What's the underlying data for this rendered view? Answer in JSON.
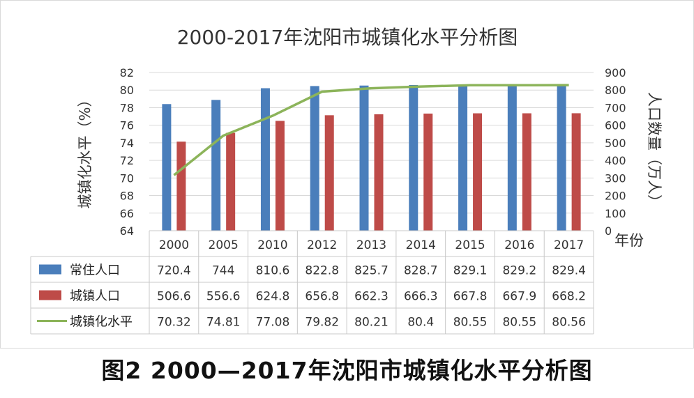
{
  "chart_data": {
    "type": "bar",
    "title": "2000-2017年沈阳市城镇化水平分析图",
    "caption": "图2 2000—2017年沈阳市城镇化水平分析图",
    "ylabel_left": "城镇化水平（%）",
    "ylabel_right": "人口数量（万人）",
    "xlabel": "年份",
    "categories": [
      "2000",
      "2005",
      "2010",
      "2012",
      "2013",
      "2014",
      "2015",
      "2016",
      "2017"
    ],
    "ylim_left": [
      64,
      82
    ],
    "yticks_left": [
      "64",
      "66",
      "68",
      "70",
      "72",
      "74",
      "76",
      "78",
      "80",
      "82"
    ],
    "ylim_right": [
      0,
      900
    ],
    "yticks_right": [
      "0",
      "100",
      "200",
      "300",
      "400",
      "500",
      "600",
      "700",
      "800",
      "900"
    ],
    "grid": true,
    "legend": "data-table-left",
    "series": [
      {
        "name": "常住人口",
        "kind": "bar",
        "axis": "right",
        "color": "#4a7ebb",
        "values": [
          720.4,
          744,
          810.6,
          822.8,
          825.7,
          828.7,
          829.1,
          829.2,
          829.4
        ],
        "labels": [
          "720.4",
          "744",
          "810.6",
          "822.8",
          "825.7",
          "828.7",
          "829.1",
          "829.2",
          "829.4"
        ]
      },
      {
        "name": "城镇人口",
        "kind": "bar",
        "axis": "right",
        "color": "#be4b48",
        "values": [
          506.6,
          556.6,
          624.8,
          656.8,
          662.3,
          666.3,
          667.8,
          667.9,
          668.2
        ],
        "labels": [
          "506.6",
          "556.6",
          "624.8",
          "656.8",
          "662.3",
          "666.3",
          "667.8",
          "667.9",
          "668.2"
        ]
      },
      {
        "name": "城镇化水平",
        "kind": "line",
        "axis": "left",
        "color": "#8cb45a",
        "values": [
          70.32,
          74.81,
          77.08,
          79.82,
          80.21,
          80.4,
          80.55,
          80.55,
          80.56
        ],
        "labels": [
          "70.32",
          "74.81",
          "77.08",
          "79.82",
          "80.21",
          "80.4",
          "80.55",
          "80.55",
          "80.56"
        ]
      }
    ]
  }
}
